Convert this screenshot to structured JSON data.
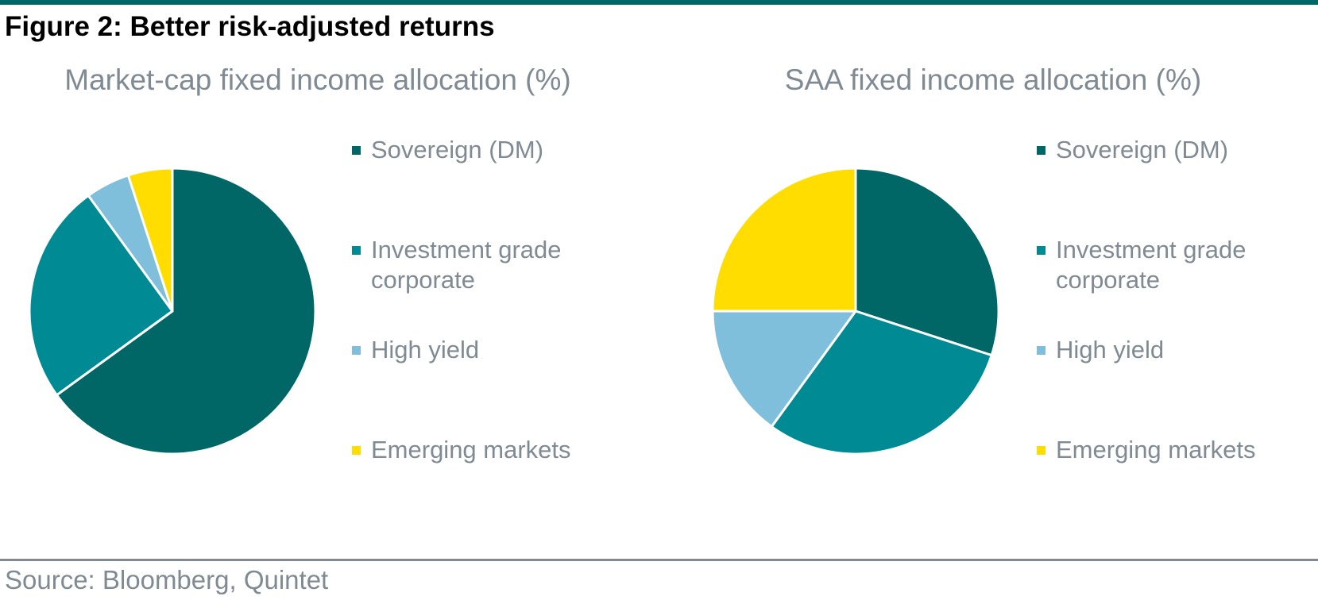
{
  "figure": {
    "title": "Figure 2: Better risk-adjusted returns",
    "source": "Source: Bloomberg, Quintet"
  },
  "chart_data": [
    {
      "type": "pie",
      "title": "Market-cap fixed income allocation (%)",
      "categories": [
        "Sovereign (DM)",
        "Investment grade corporate",
        "High yield",
        "Emerging markets"
      ],
      "values": [
        65,
        25,
        5,
        5
      ],
      "colors": [
        "#006666",
        "#008b94",
        "#7fbfdc",
        "#ffdd00"
      ],
      "start": "12 o'clock",
      "direction": "clockwise",
      "legend_position": "right"
    },
    {
      "type": "pie",
      "title": "SAA fixed income allocation (%)",
      "categories": [
        "Sovereign (DM)",
        "Investment grade corporate",
        "High yield",
        "Emerging markets"
      ],
      "values": [
        30,
        30,
        15,
        25
      ],
      "colors": [
        "#006666",
        "#008b94",
        "#7fbfdc",
        "#ffdd00"
      ],
      "start": "12 o'clock",
      "direction": "clockwise",
      "legend_position": "right"
    }
  ]
}
